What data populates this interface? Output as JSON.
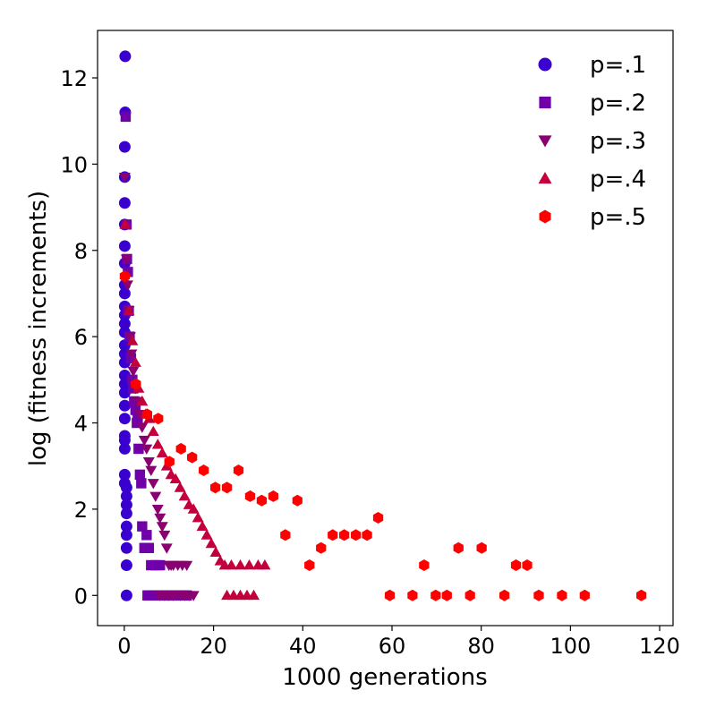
{
  "chart_data": {
    "type": "scatter",
    "title": "",
    "xlabel": "1000 generations",
    "ylabel": "log (fitness increments)",
    "xlim": [
      -6,
      123
    ],
    "ylim": [
      -0.7,
      13.1
    ],
    "xticks": [
      0,
      20,
      40,
      60,
      80,
      100,
      120
    ],
    "yticks": [
      0,
      2,
      4,
      6,
      8,
      10,
      12
    ],
    "grid": false,
    "legend_position": "top-right",
    "series": [
      {
        "name": "p=.1",
        "marker": "circle",
        "color": "#3a00d0",
        "points": [
          [
            0.2,
            12.5
          ],
          [
            0.2,
            11.2
          ],
          [
            0.1,
            10.4
          ],
          [
            0.1,
            9.7
          ],
          [
            0.1,
            9.1
          ],
          [
            0.1,
            8.6
          ],
          [
            0.1,
            8.1
          ],
          [
            0.1,
            7.7
          ],
          [
            0.1,
            7.2
          ],
          [
            0.1,
            7.0
          ],
          [
            0.1,
            6.7
          ],
          [
            0.1,
            6.5
          ],
          [
            0.1,
            6.3
          ],
          [
            0.1,
            6.1
          ],
          [
            0.1,
            5.8
          ],
          [
            0.1,
            5.6
          ],
          [
            0.1,
            5.4
          ],
          [
            0.1,
            5.1
          ],
          [
            0.1,
            4.9
          ],
          [
            0.1,
            4.7
          ],
          [
            0.1,
            4.4
          ],
          [
            0.1,
            4.1
          ],
          [
            0.1,
            3.7
          ],
          [
            0.1,
            3.6
          ],
          [
            0.1,
            3.4
          ],
          [
            0.1,
            2.8
          ],
          [
            0.1,
            2.6
          ],
          [
            0.5,
            2.5
          ],
          [
            0.5,
            2.3
          ],
          [
            0.5,
            2.1
          ],
          [
            0.5,
            1.9
          ],
          [
            0.5,
            1.6
          ],
          [
            0.5,
            1.4
          ],
          [
            0.5,
            1.1
          ],
          [
            0.5,
            0.7
          ],
          [
            0.5,
            0.0
          ]
        ]
      },
      {
        "name": "p=.2",
        "marker": "square",
        "color": "#7000a8",
        "points": [
          [
            0.3,
            11.1
          ],
          [
            0.5,
            8.6
          ],
          [
            0.6,
            7.8
          ],
          [
            0.8,
            7.5
          ],
          [
            1.0,
            6.6
          ],
          [
            1.2,
            6.0
          ],
          [
            1.5,
            5.5
          ],
          [
            1.8,
            5.0
          ],
          [
            2.0,
            4.8
          ],
          [
            2.2,
            4.5
          ],
          [
            2.5,
            4.3
          ],
          [
            2.8,
            4.0
          ],
          [
            3.0,
            4.1
          ],
          [
            3.2,
            3.4
          ],
          [
            3.5,
            2.8
          ],
          [
            3.8,
            2.6
          ],
          [
            4.0,
            1.6
          ],
          [
            4.5,
            1.1
          ],
          [
            5.0,
            1.4
          ],
          [
            5.5,
            1.1
          ],
          [
            6.0,
            0.7
          ],
          [
            7.0,
            0.7
          ],
          [
            8.0,
            0.7
          ],
          [
            5.2,
            0.0
          ],
          [
            6.2,
            0.0
          ],
          [
            7.2,
            0.0
          ],
          [
            8.5,
            0.0
          ],
          [
            9.2,
            0.0
          ],
          [
            10.0,
            0.0
          ],
          [
            11.0,
            0.0
          ],
          [
            12.0,
            0.0
          ],
          [
            13.0,
            0.0
          ],
          [
            14.0,
            0.0
          ]
        ]
      },
      {
        "name": "p=.3",
        "marker": "triangle-down",
        "color": "#8a0070",
        "points": [
          [
            0.1,
            9.7
          ],
          [
            0.5,
            7.8
          ],
          [
            0.7,
            7.2
          ],
          [
            1.0,
            6.6
          ],
          [
            1.3,
            6.0
          ],
          [
            1.6,
            5.6
          ],
          [
            2.0,
            5.2
          ],
          [
            2.5,
            4.8
          ],
          [
            3.0,
            4.5
          ],
          [
            3.5,
            4.2
          ],
          [
            4.0,
            3.9
          ],
          [
            4.5,
            3.6
          ],
          [
            5.0,
            3.4
          ],
          [
            5.5,
            3.1
          ],
          [
            6.0,
            2.9
          ],
          [
            6.5,
            2.6
          ],
          [
            7.0,
            2.3
          ],
          [
            7.5,
            2.0
          ],
          [
            8.0,
            1.8
          ],
          [
            8.5,
            1.6
          ],
          [
            9.0,
            1.4
          ],
          [
            9.5,
            1.1
          ],
          [
            10.0,
            0.7
          ],
          [
            10.5,
            0.7
          ],
          [
            11.0,
            0.7
          ],
          [
            12.0,
            0.7
          ],
          [
            13.0,
            0.7
          ],
          [
            14.0,
            0.7
          ],
          [
            8.0,
            0.0
          ],
          [
            9.0,
            0.0
          ],
          [
            10.0,
            0.0
          ],
          [
            11.0,
            0.0
          ],
          [
            12.5,
            0.0
          ],
          [
            13.5,
            0.0
          ],
          [
            14.5,
            0.0
          ],
          [
            15.5,
            0.0
          ]
        ]
      },
      {
        "name": "p=.4",
        "marker": "triangle-up",
        "color": "#c4003c",
        "points": [
          [
            0.2,
            8.6
          ],
          [
            1.0,
            6.6
          ],
          [
            1.8,
            5.9
          ],
          [
            2.5,
            5.4
          ],
          [
            3.2,
            4.8
          ],
          [
            4.0,
            4.5
          ],
          [
            4.8,
            4.2
          ],
          [
            5.6,
            4.1
          ],
          [
            6.5,
            3.8
          ],
          [
            7.5,
            3.5
          ],
          [
            8.5,
            3.3
          ],
          [
            9.5,
            3.0
          ],
          [
            10.5,
            2.8
          ],
          [
            11.5,
            2.7
          ],
          [
            12.5,
            2.5
          ],
          [
            13.5,
            2.3
          ],
          [
            14.5,
            2.1
          ],
          [
            15.5,
            2.0
          ],
          [
            16.5,
            1.8
          ],
          [
            17.5,
            1.6
          ],
          [
            18.5,
            1.4
          ],
          [
            19.5,
            1.2
          ],
          [
            20.5,
            1.0
          ],
          [
            21.5,
            0.8
          ],
          [
            22.5,
            0.7
          ],
          [
            24.0,
            0.7
          ],
          [
            26.0,
            0.7
          ],
          [
            28.0,
            0.7
          ],
          [
            30.0,
            0.7
          ],
          [
            31.5,
            0.7
          ],
          [
            23.0,
            0.0
          ],
          [
            24.5,
            0.0
          ],
          [
            26.0,
            0.0
          ],
          [
            27.5,
            0.0
          ],
          [
            29.0,
            0.0
          ]
        ]
      },
      {
        "name": "p=.5",
        "marker": "hexagon",
        "color": "#ff0000",
        "points": [
          [
            0.1,
            7.4
          ],
          [
            2.6,
            4.9
          ],
          [
            5.1,
            4.2
          ],
          [
            7.6,
            4.1
          ],
          [
            10.1,
            3.1
          ],
          [
            12.7,
            3.4
          ],
          [
            15.2,
            3.2
          ],
          [
            17.8,
            2.9
          ],
          [
            20.4,
            2.5
          ],
          [
            23.0,
            2.5
          ],
          [
            25.6,
            2.9
          ],
          [
            28.2,
            2.3
          ],
          [
            30.8,
            2.2
          ],
          [
            33.4,
            2.3
          ],
          [
            36.1,
            1.4
          ],
          [
            38.8,
            2.2
          ],
          [
            41.5,
            0.7
          ],
          [
            44.1,
            1.1
          ],
          [
            46.7,
            1.4
          ],
          [
            49.3,
            1.4
          ],
          [
            51.9,
            1.4
          ],
          [
            54.4,
            1.4
          ],
          [
            56.9,
            1.8
          ],
          [
            59.5,
            0.0
          ],
          [
            64.6,
            0.0
          ],
          [
            67.2,
            0.7
          ],
          [
            69.8,
            0.0
          ],
          [
            72.3,
            0.0
          ],
          [
            74.9,
            1.1
          ],
          [
            77.5,
            0.0
          ],
          [
            80.1,
            1.1
          ],
          [
            85.2,
            0.0
          ],
          [
            87.8,
            0.7
          ],
          [
            90.3,
            0.7
          ],
          [
            92.9,
            0.0
          ],
          [
            98.1,
            0.0
          ],
          [
            103.2,
            0.0
          ],
          [
            115.9,
            0.0
          ]
        ]
      }
    ]
  }
}
